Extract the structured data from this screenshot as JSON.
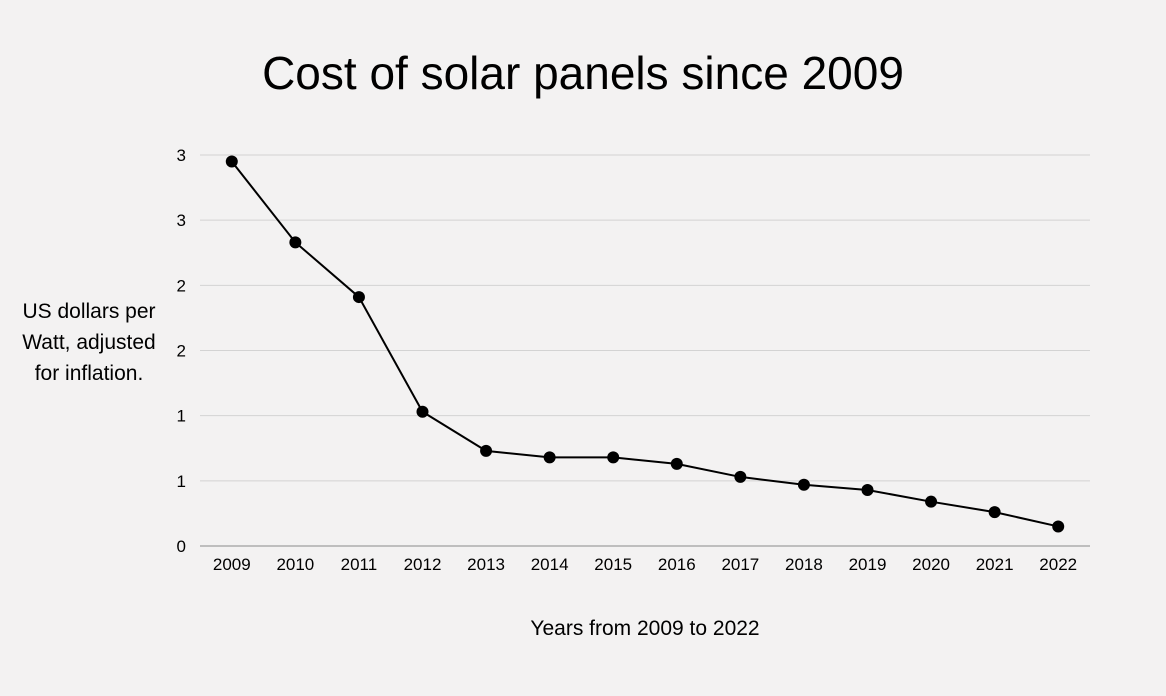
{
  "chart_data": {
    "type": "line",
    "title": "Cost of solar panels since 2009",
    "xlabel": "Years from 2009 to 2022",
    "ylabel": "US dollars per Watt, adjusted for inflation.",
    "x": [
      "2009",
      "2010",
      "2011",
      "2012",
      "2013",
      "2014",
      "2015",
      "2016",
      "2017",
      "2018",
      "2019",
      "2020",
      "2021",
      "2022"
    ],
    "series": [
      {
        "values": [
          2.95,
          2.33,
          1.91,
          1.03,
          0.73,
          0.68,
          0.68,
          0.63,
          0.53,
          0.47,
          0.43,
          0.34,
          0.26,
          0.15
        ]
      }
    ],
    "ylim": [
      0,
      3
    ],
    "yticks": [
      0,
      0.5,
      1,
      1.5,
      2,
      2.5,
      3
    ],
    "ytick_labels": [
      "0",
      "1",
      "1",
      "2",
      "2",
      "3",
      "3"
    ],
    "grid": true,
    "line_color": "#000000",
    "grid_color": "#d3d3d3",
    "axis_color": "#9e9e9e",
    "background": "#f3f2f2"
  }
}
